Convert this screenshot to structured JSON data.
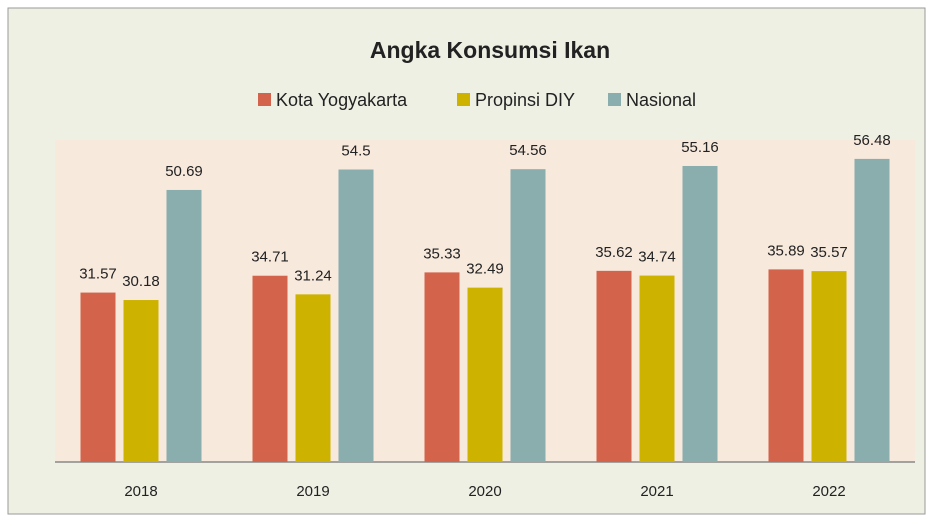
{
  "chart_data": {
    "type": "bar",
    "title": "Angka Konsumsi Ikan",
    "categories": [
      "2018",
      "2019",
      "2020",
      "2021",
      "2022"
    ],
    "series": [
      {
        "name": "Kota Yogyakarta",
        "color": "#d4634b",
        "values": [
          31.57,
          34.71,
          35.33,
          35.62,
          35.89
        ]
      },
      {
        "name": "Propinsi DIY",
        "color": "#cdb300",
        "values": [
          30.18,
          31.24,
          32.49,
          34.74,
          35.57
        ]
      },
      {
        "name": "Nasional",
        "color": "#8aadad",
        "values": [
          50.69,
          54.5,
          54.56,
          55.16,
          56.48
        ]
      }
    ],
    "ylim": [
      0,
      60
    ],
    "legend": "top"
  }
}
